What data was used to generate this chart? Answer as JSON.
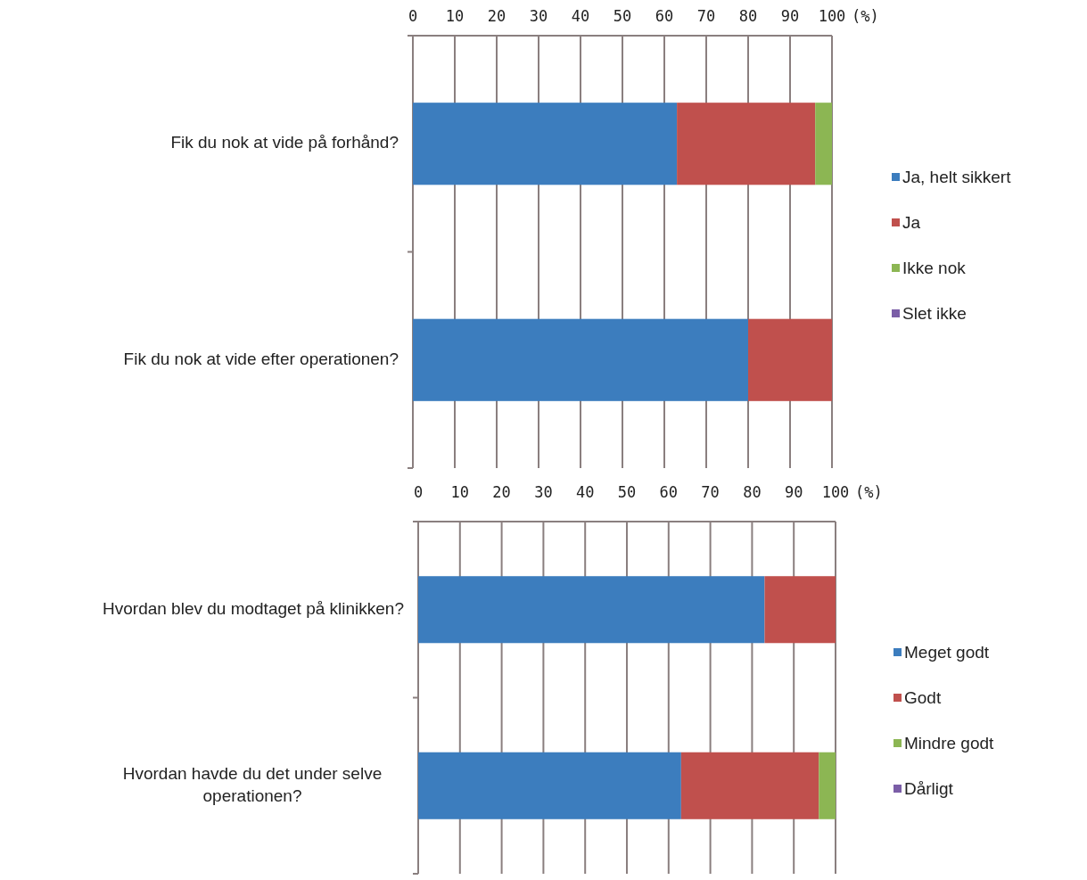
{
  "chart_data": [
    {
      "type": "bar",
      "orientation": "horizontal",
      "stacked": true,
      "xlabel": "(%)",
      "categories": [
        "Fik du nok at vide på forhånd?",
        "Fik du nok at vide efter operationen?"
      ],
      "xlim": [
        0,
        100
      ],
      "xticks": [
        0,
        10,
        20,
        30,
        40,
        50,
        60,
        70,
        80,
        90,
        100
      ],
      "grid": "x",
      "legend": "right",
      "series": [
        {
          "name": "Ja, helt sikkert",
          "color": "#3c7dbe",
          "values": [
            63,
            80
          ]
        },
        {
          "name": "Ja",
          "color": "#c0504d",
          "values": [
            33,
            20
          ]
        },
        {
          "name": "Ikke nok",
          "color": "#8cb653",
          "values": [
            4,
            0
          ]
        },
        {
          "name": "Slet ikke",
          "color": "#7b5ea7",
          "values": [
            0,
            0
          ]
        }
      ]
    },
    {
      "type": "bar",
      "orientation": "horizontal",
      "stacked": true,
      "xlabel": "(%)",
      "categories": [
        "Hvordan blev du modtaget på klinikken?",
        "Hvordan havde du det under selve operationen?"
      ],
      "xlim": [
        0,
        100
      ],
      "xticks": [
        0,
        10,
        20,
        30,
        40,
        50,
        60,
        70,
        80,
        90,
        100
      ],
      "grid": "x",
      "legend": "right",
      "series": [
        {
          "name": "Meget godt",
          "color": "#3c7dbe",
          "values": [
            83,
            63
          ]
        },
        {
          "name": "Godt",
          "color": "#c0504d",
          "values": [
            17,
            33
          ]
        },
        {
          "name": "Mindre godt",
          "color": "#8cb653",
          "values": [
            0,
            4
          ]
        },
        {
          "name": "Dårligt",
          "color": "#7b5ea7",
          "values": [
            0,
            0
          ]
        }
      ]
    }
  ]
}
